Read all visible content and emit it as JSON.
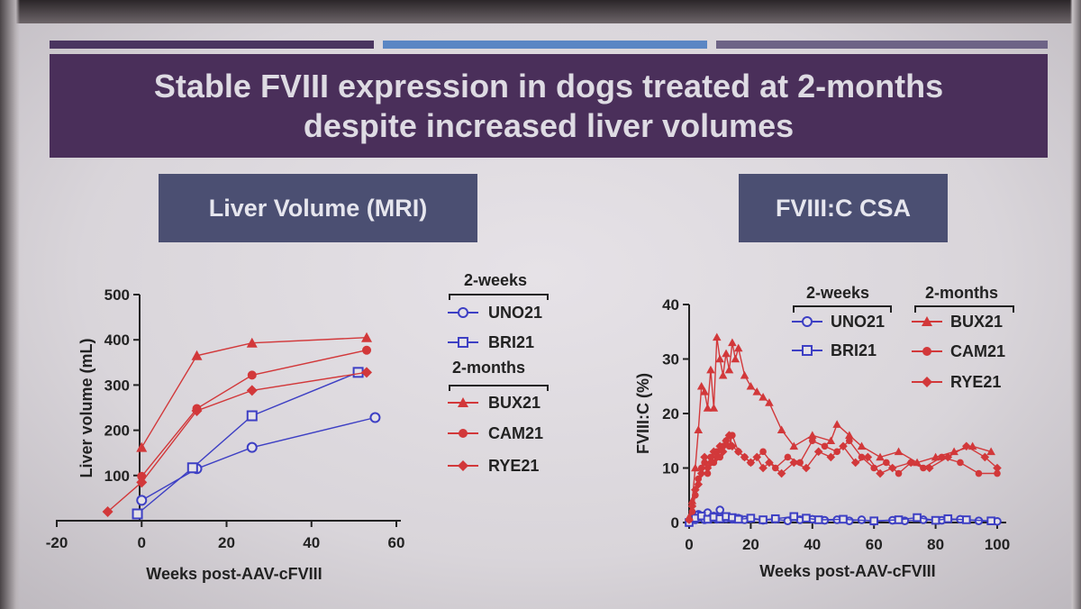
{
  "title": {
    "line1": "Stable FVIII expression in dogs treated at 2-months",
    "line2": "despite increased liver volumes"
  },
  "panels": {
    "left_label": "Liver Volume (MRI)",
    "right_label": "FVIII:C CSA"
  },
  "colors": {
    "blue": "#3d3fc4",
    "red": "#d2383a",
    "banner": "#4a2f5a",
    "panel": "#4b4f72"
  },
  "chart_data": [
    {
      "type": "line",
      "title": "Liver Volume (MRI)",
      "xlabel": "Weeks post-AAV-cFVIII",
      "ylabel": "Liver volume (mL)",
      "xlim": [
        -20,
        60
      ],
      "ylim": [
        0,
        500
      ],
      "xticks": [
        "-20",
        "0",
        "20",
        "40",
        "60"
      ],
      "yticks": [
        "100",
        "200",
        "300",
        "400",
        "500"
      ],
      "legend": {
        "group1": "2-weeks",
        "group2": "2-months",
        "entries": [
          "UNO21",
          "BRI21",
          "BUX21",
          "CAM21",
          "RYE21"
        ]
      },
      "series": [
        {
          "name": "UNO21",
          "group": "2-weeks",
          "color": "blue",
          "marker": "circle-open",
          "x": [
            0,
            13,
            26,
            55
          ],
          "y": [
            45,
            115,
            162,
            228
          ]
        },
        {
          "name": "BRI21",
          "group": "2-weeks",
          "color": "blue",
          "marker": "square-open",
          "x": [
            -1,
            12,
            26,
            51
          ],
          "y": [
            15,
            117,
            232,
            328
          ]
        },
        {
          "name": "BUX21",
          "group": "2-months",
          "color": "red",
          "marker": "triangle",
          "x": [
            0,
            13,
            26,
            53
          ],
          "y": [
            162,
            365,
            393,
            405
          ]
        },
        {
          "name": "CAM21",
          "group": "2-months",
          "color": "red",
          "marker": "circle",
          "x": [
            0,
            13,
            26,
            53
          ],
          "y": [
            98,
            248,
            322,
            377
          ]
        },
        {
          "name": "RYE21",
          "group": "2-months",
          "color": "red",
          "marker": "diamond",
          "x": [
            -8,
            0,
            13,
            26,
            53
          ],
          "y": [
            20,
            85,
            243,
            288,
            328
          ]
        }
      ]
    },
    {
      "type": "line",
      "title": "FVIII:C CSA",
      "xlabel": "Weeks post-AAV-cFVIII",
      "ylabel": "FVIII:C (%)",
      "xlim": [
        0,
        100
      ],
      "ylim": [
        0,
        40
      ],
      "xticks": [
        "0",
        "20",
        "40",
        "60",
        "80",
        "100"
      ],
      "yticks": [
        "0",
        "10",
        "20",
        "30",
        "40"
      ],
      "legend": {
        "group1": "2-weeks",
        "group2": "2-months",
        "entries": [
          "UNO21",
          "BRI21",
          "BUX21",
          "CAM21",
          "RYE21"
        ]
      },
      "series": [
        {
          "name": "UNO21",
          "group": "2-weeks",
          "color": "blue",
          "marker": "circle-open",
          "x": [
            0,
            1,
            2,
            3,
            4,
            5,
            6,
            7,
            8,
            9,
            10,
            11,
            12,
            14,
            16,
            18,
            20,
            24,
            28,
            32,
            36,
            40,
            44,
            48,
            52,
            56,
            60,
            66,
            70,
            76,
            82,
            88,
            94,
            100
          ],
          "y": [
            0,
            1,
            0.5,
            1.5,
            1,
            0.5,
            1.8,
            0.8,
            1.2,
            0.6,
            2.3,
            0.9,
            0.7,
            0.6,
            0.8,
            0.5,
            0.7,
            0.4,
            0.6,
            0.3,
            0.5,
            0.6,
            0.4,
            0.5,
            0.3,
            0.5,
            0.2,
            0.4,
            0.3,
            0.5,
            0.4,
            0.6,
            0.3,
            0.2
          ]
        },
        {
          "name": "BRI21",
          "group": "2-weeks",
          "color": "blue",
          "marker": "square-open",
          "x": [
            0,
            2,
            4,
            6,
            8,
            10,
            12,
            14,
            16,
            20,
            24,
            28,
            34,
            38,
            42,
            50,
            60,
            68,
            74,
            80,
            84,
            90,
            98
          ],
          "y": [
            0,
            0.8,
            1.2,
            0.6,
            1,
            0.7,
            1.1,
            0.9,
            0.6,
            0.8,
            0.5,
            0.7,
            1.1,
            0.8,
            0.5,
            0.6,
            0.3,
            0.5,
            0.9,
            0.4,
            0.7,
            0.5,
            0.3
          ]
        },
        {
          "name": "BUX21",
          "group": "2-months",
          "color": "red",
          "marker": "triangle",
          "x": [
            0,
            1,
            2,
            3,
            4,
            5,
            6,
            7,
            8,
            9,
            10,
            11,
            12,
            13,
            14,
            15,
            16,
            18,
            20,
            22,
            24,
            26,
            30,
            34,
            40,
            46,
            48,
            52,
            56,
            62,
            68,
            74,
            80,
            86,
            92,
            98
          ],
          "y": [
            1,
            4,
            10,
            17,
            25,
            24,
            21,
            28,
            21,
            34,
            30,
            27,
            31,
            28,
            33,
            30,
            32,
            27,
            25,
            24,
            23,
            22,
            17,
            14,
            16,
            15,
            18,
            16,
            14,
            12,
            13,
            11,
            12,
            13,
            14,
            13
          ]
        },
        {
          "name": "CAM21",
          "group": "2-months",
          "color": "red",
          "marker": "circle",
          "x": [
            0,
            1,
            2,
            3,
            4,
            5,
            6,
            7,
            8,
            9,
            10,
            11,
            12,
            13,
            14,
            16,
            18,
            20,
            24,
            28,
            32,
            36,
            40,
            44,
            48,
            52,
            56,
            60,
            64,
            68,
            72,
            76,
            82,
            88,
            94,
            100
          ],
          "y": [
            0.5,
            2,
            5,
            8,
            10,
            11,
            9,
            12,
            11,
            13,
            12,
            14,
            15,
            14,
            16,
            13,
            12,
            11,
            13,
            10,
            12,
            11,
            15,
            14,
            13,
            15,
            12,
            10,
            11,
            9,
            11,
            10,
            12,
            11,
            9,
            9
          ]
        },
        {
          "name": "RYE21",
          "group": "2-months",
          "color": "red",
          "marker": "diamond",
          "x": [
            0,
            1,
            2,
            3,
            4,
            5,
            6,
            7,
            8,
            9,
            10,
            11,
            12,
            13,
            14,
            16,
            18,
            20,
            22,
            24,
            26,
            30,
            34,
            38,
            42,
            46,
            50,
            54,
            58,
            62,
            66,
            72,
            78,
            84,
            90,
            96,
            100
          ],
          "y": [
            0.5,
            3,
            6,
            7,
            9,
            12,
            10,
            11,
            13,
            12,
            14,
            13,
            15,
            16,
            14,
            13,
            12,
            11,
            12,
            10,
            11,
            9,
            11,
            10,
            13,
            12,
            14,
            11,
            12,
            9,
            10,
            11,
            10,
            12,
            14,
            12,
            10
          ]
        }
      ]
    }
  ]
}
